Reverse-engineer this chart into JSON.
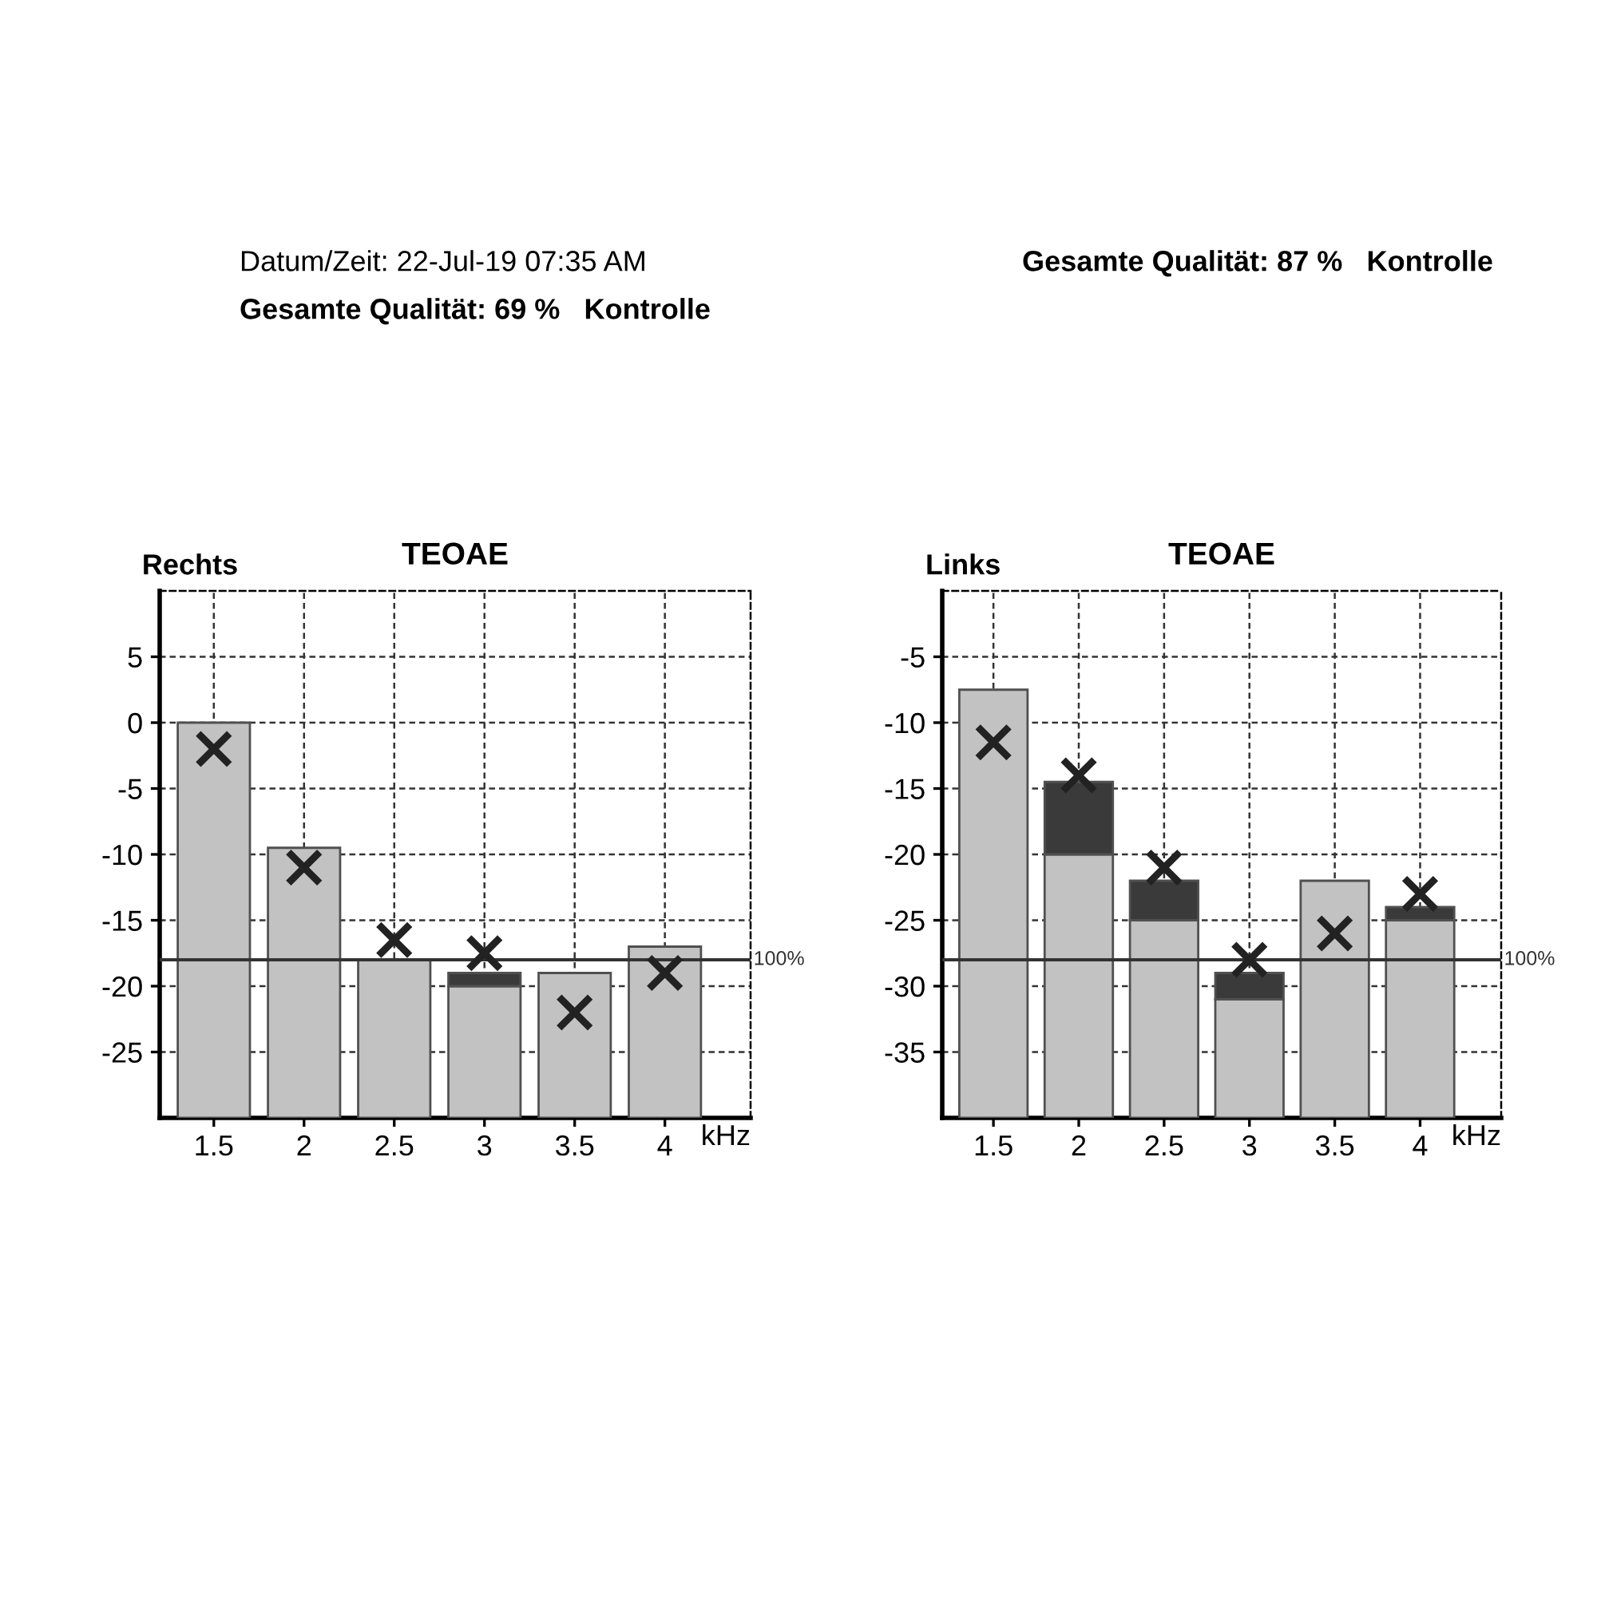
{
  "chart_data": [
    {
      "type": "bar",
      "title": "TEOAE",
      "ylabel": "Rechts",
      "xlabel": "kHz",
      "categories": [
        "1.5",
        "2",
        "2.5",
        "3",
        "3.5",
        "4"
      ],
      "series": [
        {
          "color": "#c2c2c2",
          "base": [
            -30,
            -30,
            -30,
            -30,
            -30,
            -30
          ],
          "values": [
            30,
            20.5,
            12,
            10,
            11,
            13
          ]
        },
        {
          "color": "#3a3a3a",
          "base": [
            null,
            null,
            null,
            -20,
            null,
            null
          ],
          "values": [
            null,
            null,
            null,
            1,
            null,
            null
          ]
        },
        {
          "type": "scatter",
          "marker": "cross",
          "color": "#222222",
          "x": [
            "1.5",
            "2",
            "2.5",
            "3",
            "3.5",
            "4"
          ],
          "values": [
            -2,
            -11,
            -16.5,
            -17.5,
            -22,
            -19
          ]
        }
      ],
      "ylim": [
        -30,
        10
      ],
      "yticks": [
        5,
        0,
        -5,
        -10,
        -15,
        -20,
        -25
      ],
      "grid": true,
      "ref_lines": [
        {
          "axis": "y",
          "value": -18,
          "color": "#333333"
        }
      ],
      "annotations": [
        "100%",
        "Datum/Zeit: 22-Jul-19 07:35 AM",
        "Gesamte Qualität: 69 %   Kontrolle"
      ]
    },
    {
      "type": "bar",
      "title": "TEOAE",
      "ylabel": "Links",
      "xlabel": "kHz",
      "categories": [
        "1.5",
        "2",
        "2.5",
        "3",
        "3.5",
        "4"
      ],
      "series": [
        {
          "color": "#c2c2c2",
          "base": [
            -40,
            -40,
            -40,
            -40,
            -40,
            -40
          ],
          "values": [
            32.5,
            20,
            15,
            9,
            18,
            15
          ]
        },
        {
          "color": "#3a3a3a",
          "base": [
            null,
            -20,
            -25,
            -31,
            null,
            -25
          ],
          "values": [
            null,
            5.5,
            3,
            2,
            null,
            1
          ]
        },
        {
          "type": "scatter",
          "marker": "cross",
          "color": "#222222",
          "x": [
            "1.5",
            "2",
            "2.5",
            "3",
            "3.5",
            "4"
          ],
          "values": [
            -11.5,
            -14,
            -21,
            -28,
            -26,
            -23
          ]
        }
      ],
      "ylim": [
        -40,
        0
      ],
      "yticks": [
        -5,
        -10,
        -15,
        -20,
        -25,
        -30,
        -35
      ],
      "grid": true,
      "ref_lines": [
        {
          "axis": "y",
          "value": -28,
          "color": "#333333"
        }
      ],
      "annotations": [
        "100%",
        "Gesamte Qualität: 87 %   Kontrolle"
      ]
    }
  ]
}
